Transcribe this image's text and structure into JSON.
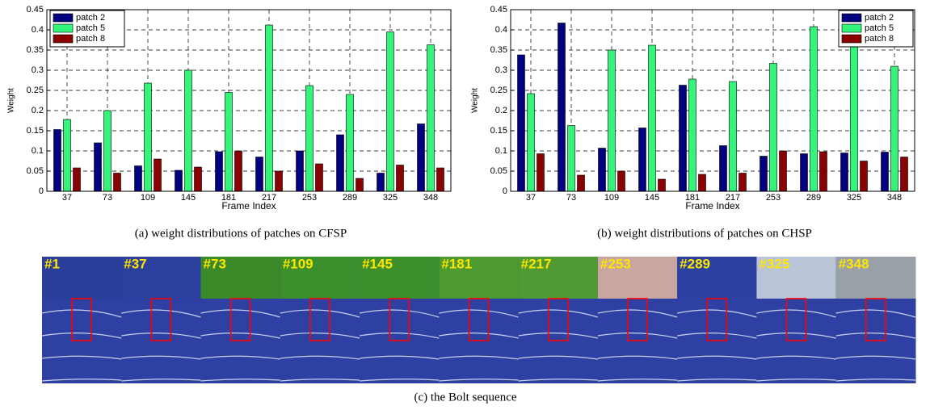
{
  "chart_data": [
    {
      "type": "bar",
      "xlabel": "Frame Index",
      "ylabel": "Weight",
      "categories": [
        "37",
        "73",
        "109",
        "145",
        "181",
        "217",
        "253",
        "289",
        "325",
        "348"
      ],
      "series": [
        {
          "name": "patch 2",
          "color": "#000080",
          "values": [
            0.153,
            0.12,
            0.063,
            0.052,
            0.098,
            0.085,
            0.1,
            0.14,
            0.045,
            0.167
          ]
        },
        {
          "name": "patch 5",
          "color": "#33f57a",
          "values": [
            0.178,
            0.2,
            0.268,
            0.3,
            0.245,
            0.412,
            0.262,
            0.24,
            0.395,
            0.363
          ]
        },
        {
          "name": "patch 8",
          "color": "#8b0000",
          "values": [
            0.058,
            0.045,
            0.08,
            0.06,
            0.1,
            0.05,
            0.068,
            0.032,
            0.065,
            0.058
          ]
        }
      ],
      "ylim": [
        0,
        0.45
      ],
      "yticks": [
        0,
        0.05,
        0.1,
        0.15,
        0.2,
        0.25,
        0.3,
        0.35,
        0.4,
        0.45
      ],
      "grid": true,
      "legend": "upper left",
      "caption": "(a) weight distributions of patches on CFSP"
    },
    {
      "type": "bar",
      "xlabel": "Frame Index",
      "ylabel": "Weight",
      "categories": [
        "37",
        "73",
        "109",
        "145",
        "181",
        "217",
        "253",
        "289",
        "325",
        "348"
      ],
      "series": [
        {
          "name": "patch 2",
          "color": "#000080",
          "values": [
            0.338,
            0.417,
            0.107,
            0.157,
            0.263,
            0.113,
            0.087,
            0.093,
            0.095,
            0.097
          ]
        },
        {
          "name": "patch 5",
          "color": "#33f57a",
          "values": [
            0.242,
            0.163,
            0.35,
            0.362,
            0.278,
            0.272,
            0.317,
            0.408,
            0.387,
            0.31
          ]
        },
        {
          "name": "patch 8",
          "color": "#8b0000",
          "values": [
            0.093,
            0.04,
            0.05,
            0.03,
            0.042,
            0.045,
            0.1,
            0.098,
            0.075,
            0.085
          ]
        }
      ],
      "ylim": [
        0,
        0.45
      ],
      "yticks": [
        0,
        0.05,
        0.1,
        0.15,
        0.2,
        0.25,
        0.3,
        0.35,
        0.4,
        0.45
      ],
      "grid": true,
      "legend": "upper right",
      "caption": "(b) weight distributions of patches on CHSP"
    }
  ],
  "frames": [
    "#1",
    "#37",
    "#73",
    "#109",
    "#145",
    "#181",
    "#217",
    "#253",
    "#289",
    "#325",
    "#348"
  ],
  "sequence_caption": "(c) the Bolt sequence"
}
